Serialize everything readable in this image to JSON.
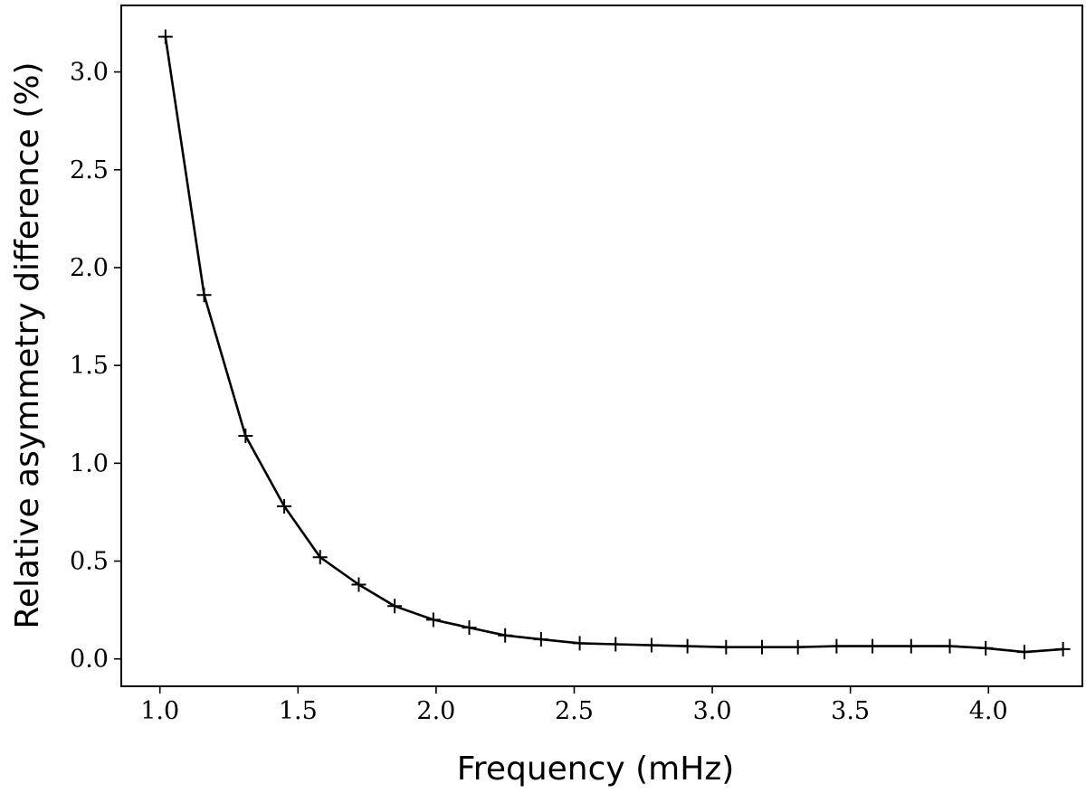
{
  "chart_data": {
    "type": "line",
    "xlabel": "Frequency (mHz)",
    "ylabel": "Relative asymmetry difference (%)",
    "xlim": [
      0.86,
      4.34
    ],
    "ylim": [
      -0.14,
      3.34
    ],
    "xticks": [
      "1.0",
      "1.5",
      "2.0",
      "2.5",
      "3.0",
      "3.5",
      "4.0"
    ],
    "yticks": [
      "0.0",
      "0.5",
      "1.0",
      "1.5",
      "2.0",
      "2.5",
      "3.0"
    ],
    "grid": false,
    "marker": "+",
    "line_color": "#000000",
    "series": [
      {
        "x": [
          1.02,
          1.16,
          1.31,
          1.45,
          1.58,
          1.72,
          1.85,
          1.99,
          2.12,
          2.25,
          2.38,
          2.52,
          2.65,
          2.78,
          2.91,
          3.05,
          3.18,
          3.31,
          3.45,
          3.58,
          3.72,
          3.86,
          3.99,
          4.13,
          4.27
        ],
        "y": [
          3.18,
          1.86,
          1.14,
          0.78,
          0.52,
          0.38,
          0.27,
          0.2,
          0.16,
          0.12,
          0.1,
          0.08,
          0.075,
          0.07,
          0.065,
          0.06,
          0.06,
          0.06,
          0.065,
          0.065,
          0.065,
          0.065,
          0.055,
          0.035,
          0.05
        ]
      }
    ]
  }
}
